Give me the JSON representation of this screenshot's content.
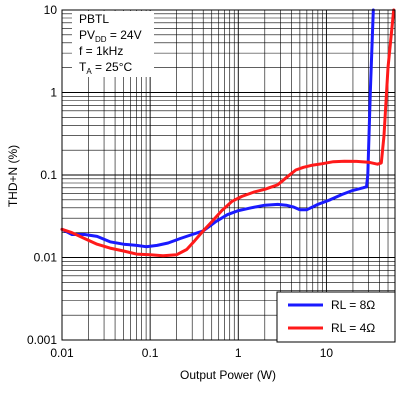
{
  "chart_data": {
    "type": "line",
    "title": "",
    "xlabel": "Output Power (W)",
    "ylabel": "THD+N (%)",
    "xscale": "log",
    "yscale": "log",
    "xlim": [
      0.01,
      60
    ],
    "ylim": [
      0.001,
      10
    ],
    "grid": true,
    "x_tick_labels": [
      "0.01",
      "0.1",
      "1",
      "10"
    ],
    "y_tick_labels": [
      "0.001",
      "0.01",
      "0.1",
      "1",
      "10"
    ],
    "conditions": {
      "line1": "PBTL",
      "line2_prefix": "PV",
      "line2_sub": "DD",
      "line2_suffix": " = 24V",
      "line3": "f = 1kHz",
      "line4_prefix": "T",
      "line4_sub": "A",
      "line4_suffix": " = 25°C"
    },
    "legend_position": "bottom-right",
    "series": [
      {
        "name": "RL = 8Ω",
        "color": "#1a1aff",
        "x": [
          0.01,
          0.013,
          0.018,
          0.025,
          0.035,
          0.05,
          0.07,
          0.09,
          0.12,
          0.16,
          0.22,
          0.3,
          0.4,
          0.55,
          0.75,
          1.0,
          1.4,
          2.0,
          2.8,
          3.5,
          4.2,
          5.0,
          6.0,
          8.0,
          11,
          15,
          20,
          26,
          28.5,
          29.5,
          31.5,
          34
        ],
        "y": [
          0.022,
          0.019,
          0.019,
          0.018,
          0.0155,
          0.0145,
          0.014,
          0.0135,
          0.014,
          0.015,
          0.017,
          0.019,
          0.021,
          0.027,
          0.033,
          0.037,
          0.04,
          0.043,
          0.044,
          0.043,
          0.041,
          0.038,
          0.038,
          0.044,
          0.05,
          0.058,
          0.065,
          0.07,
          0.072,
          0.1,
          1.0,
          10
        ]
      },
      {
        "name": "RL = 4Ω",
        "color": "#ff1a1a",
        "x": [
          0.01,
          0.013,
          0.018,
          0.025,
          0.035,
          0.05,
          0.07,
          0.1,
          0.14,
          0.2,
          0.26,
          0.32,
          0.4,
          0.5,
          0.65,
          0.85,
          1.1,
          1.5,
          2.0,
          2.8,
          3.6,
          4.5,
          5.5,
          7.0,
          9.0,
          12,
          16,
          22,
          30,
          38,
          42,
          45,
          50,
          58
        ],
        "y": [
          0.022,
          0.02,
          0.017,
          0.0145,
          0.013,
          0.012,
          0.011,
          0.0108,
          0.0105,
          0.0108,
          0.0125,
          0.016,
          0.021,
          0.027,
          0.037,
          0.048,
          0.055,
          0.062,
          0.067,
          0.076,
          0.095,
          0.115,
          0.124,
          0.132,
          0.137,
          0.145,
          0.147,
          0.146,
          0.143,
          0.135,
          0.14,
          0.3,
          2.0,
          10
        ]
      }
    ]
  }
}
